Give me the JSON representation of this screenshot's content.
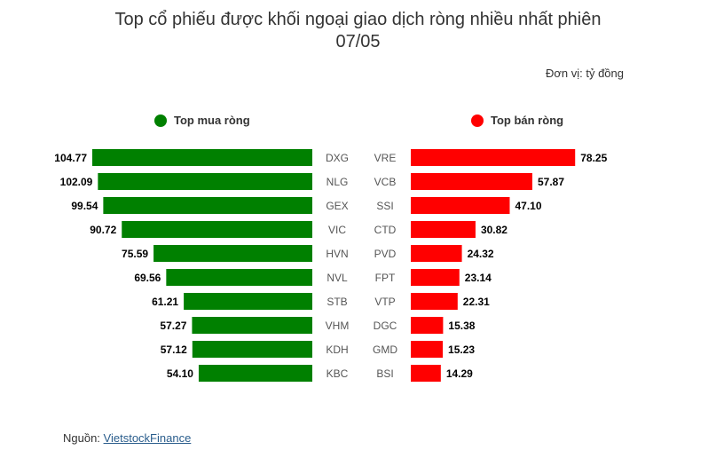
{
  "title_line1": "Top cổ phiếu được khối ngoại giao dịch ròng nhiều nhất phiên",
  "title_line2": "07/05",
  "unit": "Đơn vị: tỷ đồng",
  "legend": {
    "buy_label": "Top mua ròng",
    "sell_label": "Top bán ròng",
    "buy_color": "#008000",
    "sell_color": "#ff0000"
  },
  "source": {
    "prefix": "Nguồn: ",
    "link": "VietstockFinance"
  },
  "chart_data": [
    {
      "type": "bar",
      "orientation": "horizontal",
      "direction": "right-to-left",
      "series": [
        {
          "name": "Top mua ròng",
          "color": "#008000",
          "categories": [
            "DXG",
            "NLG",
            "GEX",
            "VIC",
            "HVN",
            "NVL",
            "STB",
            "VHM",
            "KDH",
            "KBC"
          ],
          "values": [
            104.77,
            102.09,
            99.54,
            90.72,
            75.59,
            69.56,
            61.21,
            57.27,
            57.12,
            54.1
          ],
          "labels": [
            "104.77",
            "102.09",
            "99.54",
            "90.72",
            "75.59",
            "69.56",
            "61.21",
            "57.27",
            "57.12",
            "54.10"
          ]
        }
      ]
    },
    {
      "type": "bar",
      "orientation": "horizontal",
      "direction": "left-to-right",
      "series": [
        {
          "name": "Top bán ròng",
          "color": "#ff0000",
          "categories": [
            "VRE",
            "VCB",
            "SSI",
            "CTD",
            "PVD",
            "FPT",
            "VTP",
            "DGC",
            "GMD",
            "BSI"
          ],
          "values": [
            78.25,
            57.87,
            47.1,
            30.82,
            24.32,
            23.14,
            22.31,
            15.38,
            15.23,
            14.29
          ],
          "labels": [
            "78.25",
            "57.87",
            "47.10",
            "30.82",
            "24.32",
            "23.14",
            "22.31",
            "15.38",
            "15.23",
            "14.29"
          ]
        }
      ]
    }
  ]
}
